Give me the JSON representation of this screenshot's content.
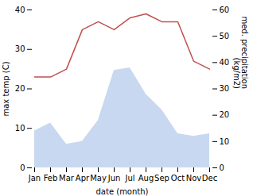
{
  "chart_data": {
    "type": "line",
    "categories": [
      "Jan",
      "Feb",
      "Mar",
      "Apr",
      "May",
      "Jun",
      "Jul",
      "Aug",
      "Sep",
      "Oct",
      "Nov",
      "Dec"
    ],
    "xlabel": "date (month)",
    "ylabel": "max temp (C)",
    "y2label": "med. precipitation\n(kg/m2)",
    "series": [
      {
        "type": "area",
        "axis": "y2",
        "color": "#c8d8f0",
        "values": [
          14,
          17,
          9,
          10,
          18,
          37,
          38,
          28,
          22,
          13,
          12,
          13
        ]
      },
      {
        "type": "line",
        "color": "#c0504d",
        "values": [
          23,
          23,
          25,
          35,
          37,
          35,
          38,
          39,
          37,
          37,
          27,
          25
        ]
      }
    ],
    "ylim": [
      0,
      40
    ],
    "yticks": [
      0,
      10,
      20,
      30,
      40
    ],
    "y2lim": [
      0,
      60
    ],
    "y2ticks": [
      0,
      10,
      20,
      30,
      40,
      50,
      60
    ],
    "grid": false
  }
}
